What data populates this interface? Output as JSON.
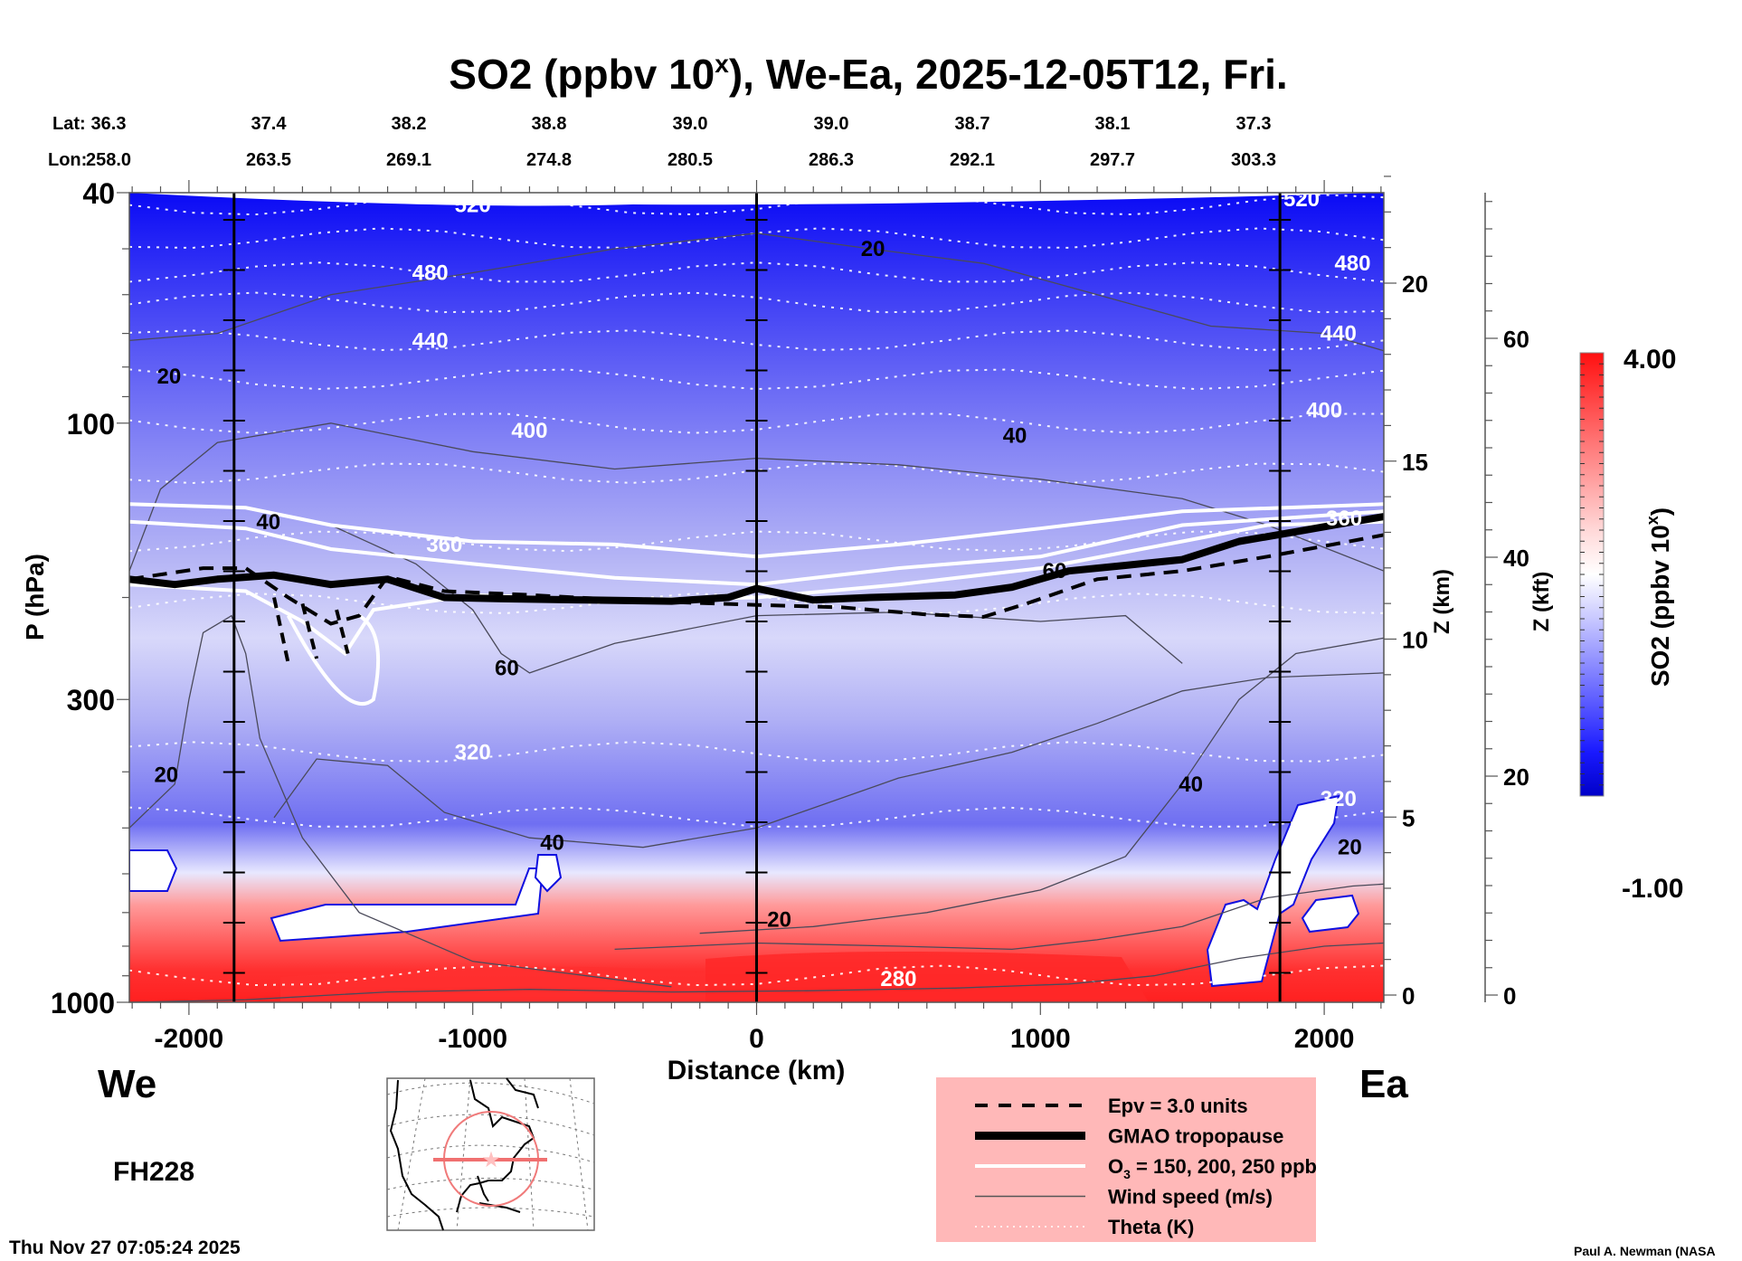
{
  "chart_data": {
    "type": "heatmap",
    "title": "SO2 (ppbv 10",
    "title_sup": "x",
    "title_suffix": "), We-Ea, 2025-12-05T12, Fri.",
    "xlabel": "Distance (km)",
    "ylabel": "P (hPa)",
    "y2label": "Z (km)",
    "y3label": "Z (kft)",
    "xlim": [
      -2210,
      2210
    ],
    "ylim_hpa": [
      1000,
      40
    ],
    "x_ticks": [
      -2000,
      -1000,
      0,
      1000,
      2000
    ],
    "x_tick_labels": [
      "-2000",
      "-1000",
      "0",
      "1000",
      "2000"
    ],
    "y_ticks_hpa": [
      40,
      100,
      300,
      1000
    ],
    "y_tick_labels": [
      "40",
      "100",
      "300",
      "1000"
    ],
    "z_km_ticks": [
      0,
      5,
      10,
      15,
      20
    ],
    "z_kft_ticks": [
      0,
      20,
      40,
      60
    ],
    "reference_lines_km": [
      -1841,
      0,
      1844
    ],
    "lat_label": "Lat:",
    "lon_label": "Lon:",
    "lat": [
      "36.3",
      "37.4",
      "38.2",
      "38.8",
      "39.0",
      "39.0",
      "38.7",
      "38.1",
      "37.3"
    ],
    "lon": [
      "258.0",
      "263.5",
      "269.1",
      "274.8",
      "280.5",
      "286.3",
      "292.1",
      "297.7",
      "303.3"
    ],
    "colorbar": {
      "label": "SO2 (ppbv 10",
      "label_sup": "x",
      "label_suffix": ")",
      "min": -1.0,
      "max": 4.0,
      "min_label": "-1.00",
      "max_label": "4.00",
      "levels": 40,
      "low_color": "#0000c8",
      "mid_color": "#ffffff",
      "high_color": "#ff0000"
    },
    "theta_contours_K": [
      {
        "value": 520,
        "p": 42
      },
      {
        "value": 500,
        "p": 48
      },
      {
        "value": 480,
        "p": 55
      },
      {
        "value": 460,
        "p": 62
      },
      {
        "value": 440,
        "p": 72
      },
      {
        "value": 420,
        "p": 84
      },
      {
        "value": 400,
        "p": 100
      },
      {
        "value": 380,
        "p": 122
      },
      {
        "value": 360,
        "p": 160
      },
      {
        "value": 340,
        "p": 205
      },
      {
        "value": 320,
        "p": 370
      },
      {
        "value": 300,
        "p": 480
      },
      {
        "value": 280,
        "p": 900
      }
    ],
    "theta_labels": [
      {
        "text": "520",
        "x": -1000,
        "p": 42
      },
      {
        "text": "480",
        "x": -1150,
        "p": 55
      },
      {
        "text": "440",
        "x": -1150,
        "p": 72
      },
      {
        "text": "400",
        "x": -800,
        "p": 103
      },
      {
        "text": "360",
        "x": -1100,
        "p": 162
      },
      {
        "text": "320",
        "x": -1000,
        "p": 370
      },
      {
        "text": "520",
        "x": 1920,
        "p": 41
      },
      {
        "text": "480",
        "x": 2100,
        "p": 53
      },
      {
        "text": "440",
        "x": 2050,
        "p": 70
      },
      {
        "text": "400",
        "x": 2000,
        "p": 95
      },
      {
        "text": "360",
        "x": 2070,
        "p": 146
      },
      {
        "text": "320",
        "x": 2050,
        "p": 445
      },
      {
        "text": "280",
        "x": 500,
        "p": 910
      }
    ],
    "tropopause_hPa": [
      [
        -2210,
        186
      ],
      [
        -2050,
        190
      ],
      [
        -1900,
        186
      ],
      [
        -1700,
        183
      ],
      [
        -1500,
        190
      ],
      [
        -1300,
        186
      ],
      [
        -1100,
        200
      ],
      [
        -900,
        201
      ],
      [
        -600,
        202
      ],
      [
        -300,
        203
      ],
      [
        -100,
        200
      ],
      [
        0,
        193
      ],
      [
        200,
        202
      ],
      [
        400,
        200
      ],
      [
        700,
        198
      ],
      [
        900,
        192
      ],
      [
        1100,
        180
      ],
      [
        1300,
        176
      ],
      [
        1500,
        172
      ],
      [
        1700,
        160
      ],
      [
        1900,
        154
      ],
      [
        2100,
        148
      ],
      [
        2210,
        145
      ]
    ],
    "epv_hPa": [
      [
        -2210,
        186
      ],
      [
        -1950,
        178
      ],
      [
        -1800,
        178
      ],
      [
        -1650,
        200
      ],
      [
        -1500,
        222
      ],
      [
        -1400,
        215
      ],
      [
        -1300,
        184
      ],
      [
        -1100,
        195
      ],
      [
        -800,
        198
      ],
      [
        -400,
        203
      ],
      [
        0,
        206
      ],
      [
        300,
        208
      ],
      [
        600,
        214
      ],
      [
        800,
        216
      ],
      [
        950,
        205
      ],
      [
        1200,
        186
      ],
      [
        1500,
        180
      ],
      [
        1800,
        170
      ],
      [
        2210,
        156
      ]
    ],
    "o3_contours_hPa": [
      [
        [
          -2210,
          138
        ],
        [
          -1800,
          140
        ],
        [
          -1500,
          150
        ],
        [
          -1000,
          160
        ],
        [
          -500,
          162
        ],
        [
          0,
          170
        ],
        [
          500,
          162
        ],
        [
          1000,
          152
        ],
        [
          1500,
          142
        ],
        [
          2210,
          138
        ]
      ],
      [
        [
          -2210,
          148
        ],
        [
          -1800,
          152
        ],
        [
          -1500,
          165
        ],
        [
          -1000,
          175
        ],
        [
          -500,
          185
        ],
        [
          0,
          190
        ],
        [
          500,
          178
        ],
        [
          1000,
          170
        ],
        [
          1500,
          150
        ],
        [
          2210,
          142
        ]
      ],
      [
        [
          -2210,
          190
        ],
        [
          -1800,
          195
        ],
        [
          -1600,
          220
        ],
        [
          -1450,
          250
        ],
        [
          -1350,
          210
        ],
        [
          -1000,
          198
        ],
        [
          -500,
          202
        ],
        [
          0,
          200
        ],
        [
          500,
          190
        ],
        [
          1000,
          178
        ],
        [
          1500,
          160
        ],
        [
          1800,
          150
        ],
        [
          2210,
          148
        ]
      ]
    ],
    "wind_speed_labels": [
      {
        "text": "20",
        "x": -2070,
        "p": 83
      },
      {
        "text": "40",
        "x": -1720,
        "p": 148
      },
      {
        "text": "20",
        "x": -2080,
        "p": 405
      },
      {
        "text": "60",
        "x": -880,
        "p": 265
      },
      {
        "text": "40",
        "x": -720,
        "p": 530
      },
      {
        "text": "20",
        "x": 410,
        "p": 50
      },
      {
        "text": "40",
        "x": 910,
        "p": 105
      },
      {
        "text": "60",
        "x": 1050,
        "p": 180
      },
      {
        "text": "40",
        "x": 1530,
        "p": 420
      },
      {
        "text": "20",
        "x": 80,
        "p": 720
      },
      {
        "text": "20",
        "x": 2090,
        "p": 540
      }
    ]
  },
  "labels": {
    "west": "We",
    "east": "Ea",
    "forecast_hour": "FH228",
    "timestamp": "Thu Nov 27 07:05:24 2025",
    "credit": "Paul A. Newman (NASA"
  },
  "legend": {
    "background": "#ffb8b8",
    "items": [
      {
        "label": "Epv = 3.0 units",
        "style": "dashed"
      },
      {
        "label": "GMAO tropopause",
        "style": "thick"
      },
      {
        "label": "O",
        "sub": "3",
        "label_suffix": " = 150, 200, 250 ppb",
        "style": "white"
      },
      {
        "label": "Wind speed (m/s)",
        "style": "thin"
      },
      {
        "label": "Theta (K)",
        "style": "dotted"
      }
    ]
  }
}
